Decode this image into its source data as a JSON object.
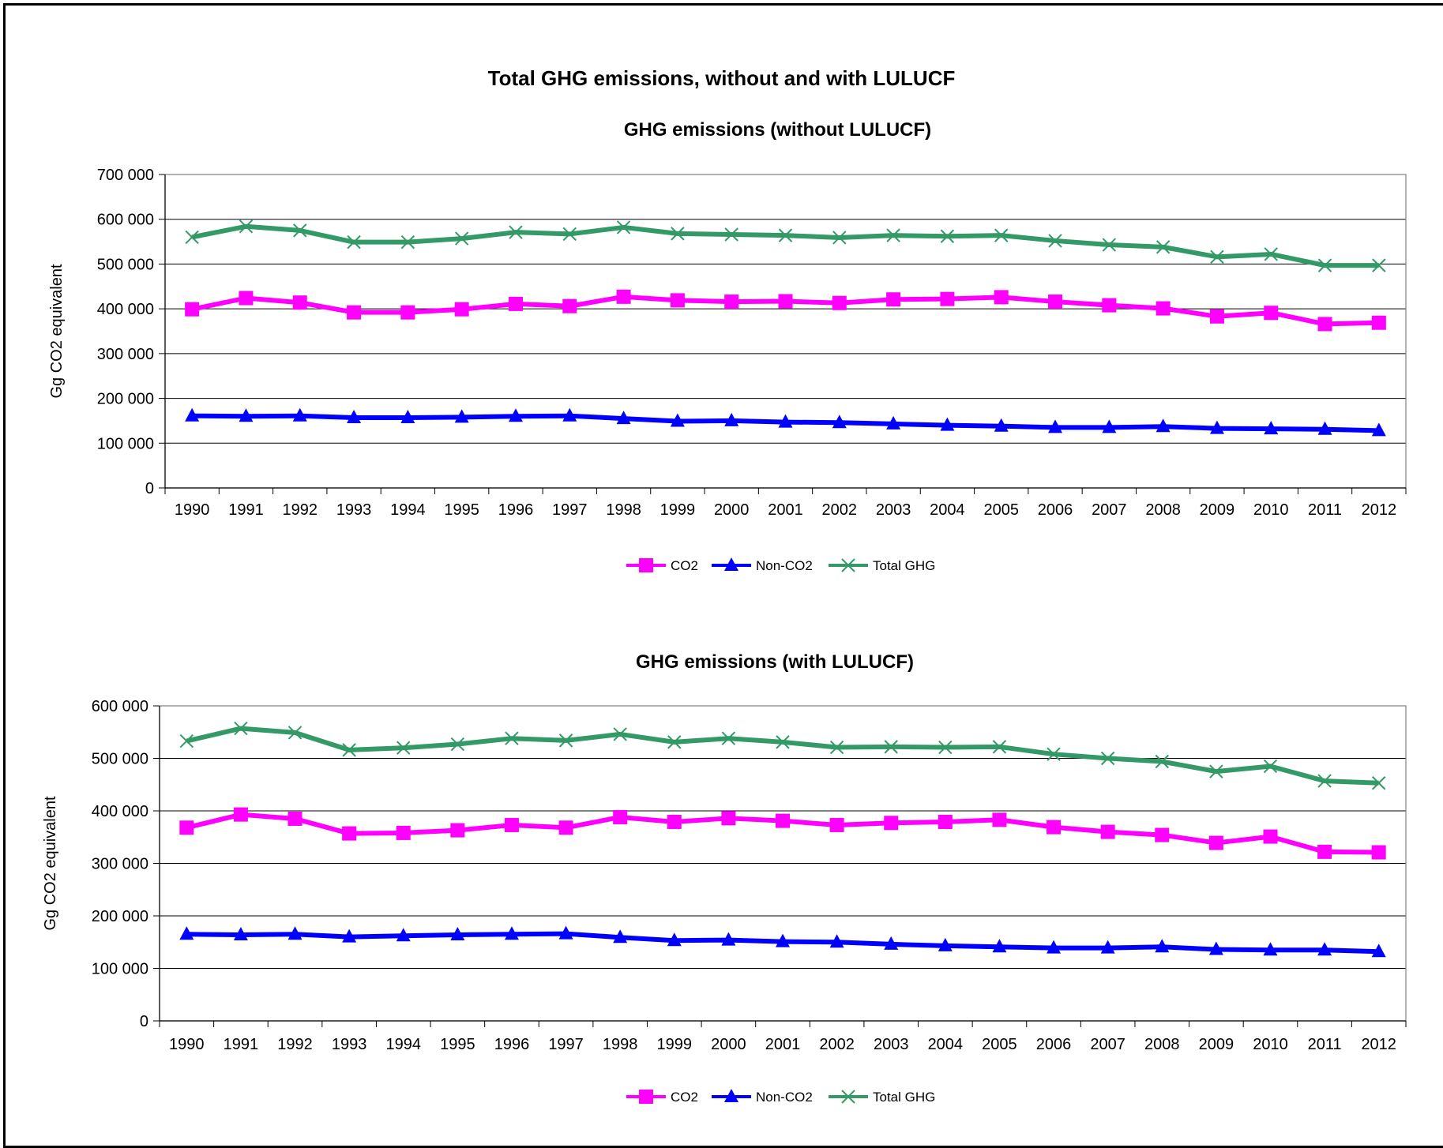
{
  "main_title": "Total GHG emissions, without and with LULUCF",
  "chart_data": [
    {
      "type": "line",
      "title": "GHG emissions (without LULUCF)",
      "xlabel": "",
      "ylabel": "Gg CO2 equivalent",
      "ylim": [
        0,
        700000
      ],
      "yticks": [
        0,
        100000,
        200000,
        300000,
        400000,
        500000,
        600000,
        700000
      ],
      "ytick_labels": [
        "0",
        "100 000",
        "200 000",
        "300 000",
        "400 000",
        "500 000",
        "600 000",
        "700 000"
      ],
      "grid": true,
      "legend": "bottom",
      "categories": [
        "1990",
        "1991",
        "1992",
        "1993",
        "1994",
        "1995",
        "1996",
        "1997",
        "1998",
        "1999",
        "2000",
        "2001",
        "2002",
        "2003",
        "2004",
        "2005",
        "2006",
        "2007",
        "2008",
        "2009",
        "2010",
        "2011",
        "2012"
      ],
      "series": [
        {
          "name": "CO2",
          "color": "#ff00ff",
          "marker": "square",
          "values": [
            399000,
            424000,
            414000,
            392000,
            392000,
            399000,
            411000,
            406000,
            427000,
            419000,
            416000,
            417000,
            413000,
            421000,
            422000,
            426000,
            416000,
            408000,
            401000,
            383000,
            391000,
            366000,
            369000
          ]
        },
        {
          "name": "Non-CO2",
          "color": "#0000ff",
          "marker": "triangle",
          "values": [
            161000,
            160000,
            161000,
            157000,
            157000,
            158000,
            160000,
            161000,
            155000,
            149000,
            150000,
            147000,
            146000,
            143000,
            140000,
            138000,
            135000,
            135000,
            137000,
            133000,
            132000,
            131000,
            128000
          ]
        },
        {
          "name": "Total GHG",
          "color": "#339966",
          "marker": "x",
          "values": [
            560000,
            584000,
            575000,
            549000,
            549000,
            557000,
            571000,
            567000,
            582000,
            568000,
            566000,
            564000,
            559000,
            564000,
            562000,
            564000,
            552000,
            543000,
            538000,
            516000,
            522000,
            497000,
            497000
          ]
        }
      ]
    },
    {
      "type": "line",
      "title": "GHG emissions (with LULUCF)",
      "xlabel": "",
      "ylabel": "Gg CO2 equivalent",
      "ylim": [
        0,
        600000
      ],
      "yticks": [
        0,
        100000,
        200000,
        300000,
        400000,
        500000,
        600000
      ],
      "ytick_labels": [
        "0",
        "100 000",
        "200 000",
        "300 000",
        "400 000",
        "500 000",
        "600 000"
      ],
      "grid": true,
      "legend": "bottom",
      "categories": [
        "1990",
        "1991",
        "1992",
        "1993",
        "1994",
        "1995",
        "1996",
        "1997",
        "1998",
        "1999",
        "2000",
        "2001",
        "2002",
        "2003",
        "2004",
        "2005",
        "2006",
        "2007",
        "2008",
        "2009",
        "2010",
        "2011",
        "2012"
      ],
      "series": [
        {
          "name": "CO2",
          "color": "#ff00ff",
          "marker": "square",
          "values": [
            368000,
            393000,
            385000,
            357000,
            358000,
            363000,
            373000,
            368000,
            388000,
            379000,
            386000,
            381000,
            373000,
            377000,
            379000,
            383000,
            369000,
            360000,
            354000,
            339000,
            351000,
            322000,
            321000
          ]
        },
        {
          "name": "Non-CO2",
          "color": "#0000ff",
          "marker": "triangle",
          "values": [
            165000,
            164000,
            165000,
            160000,
            162000,
            164000,
            165000,
            166000,
            159000,
            153000,
            154000,
            151000,
            150000,
            146000,
            143000,
            141000,
            139000,
            139000,
            141000,
            136000,
            135000,
            135000,
            132000
          ]
        },
        {
          "name": "Total GHG",
          "color": "#339966",
          "marker": "x",
          "values": [
            533000,
            557000,
            549000,
            516000,
            520000,
            527000,
            538000,
            534000,
            546000,
            531000,
            538000,
            531000,
            521000,
            522000,
            521000,
            522000,
            508000,
            500000,
            494000,
            475000,
            485000,
            457000,
            453000
          ]
        }
      ]
    }
  ]
}
